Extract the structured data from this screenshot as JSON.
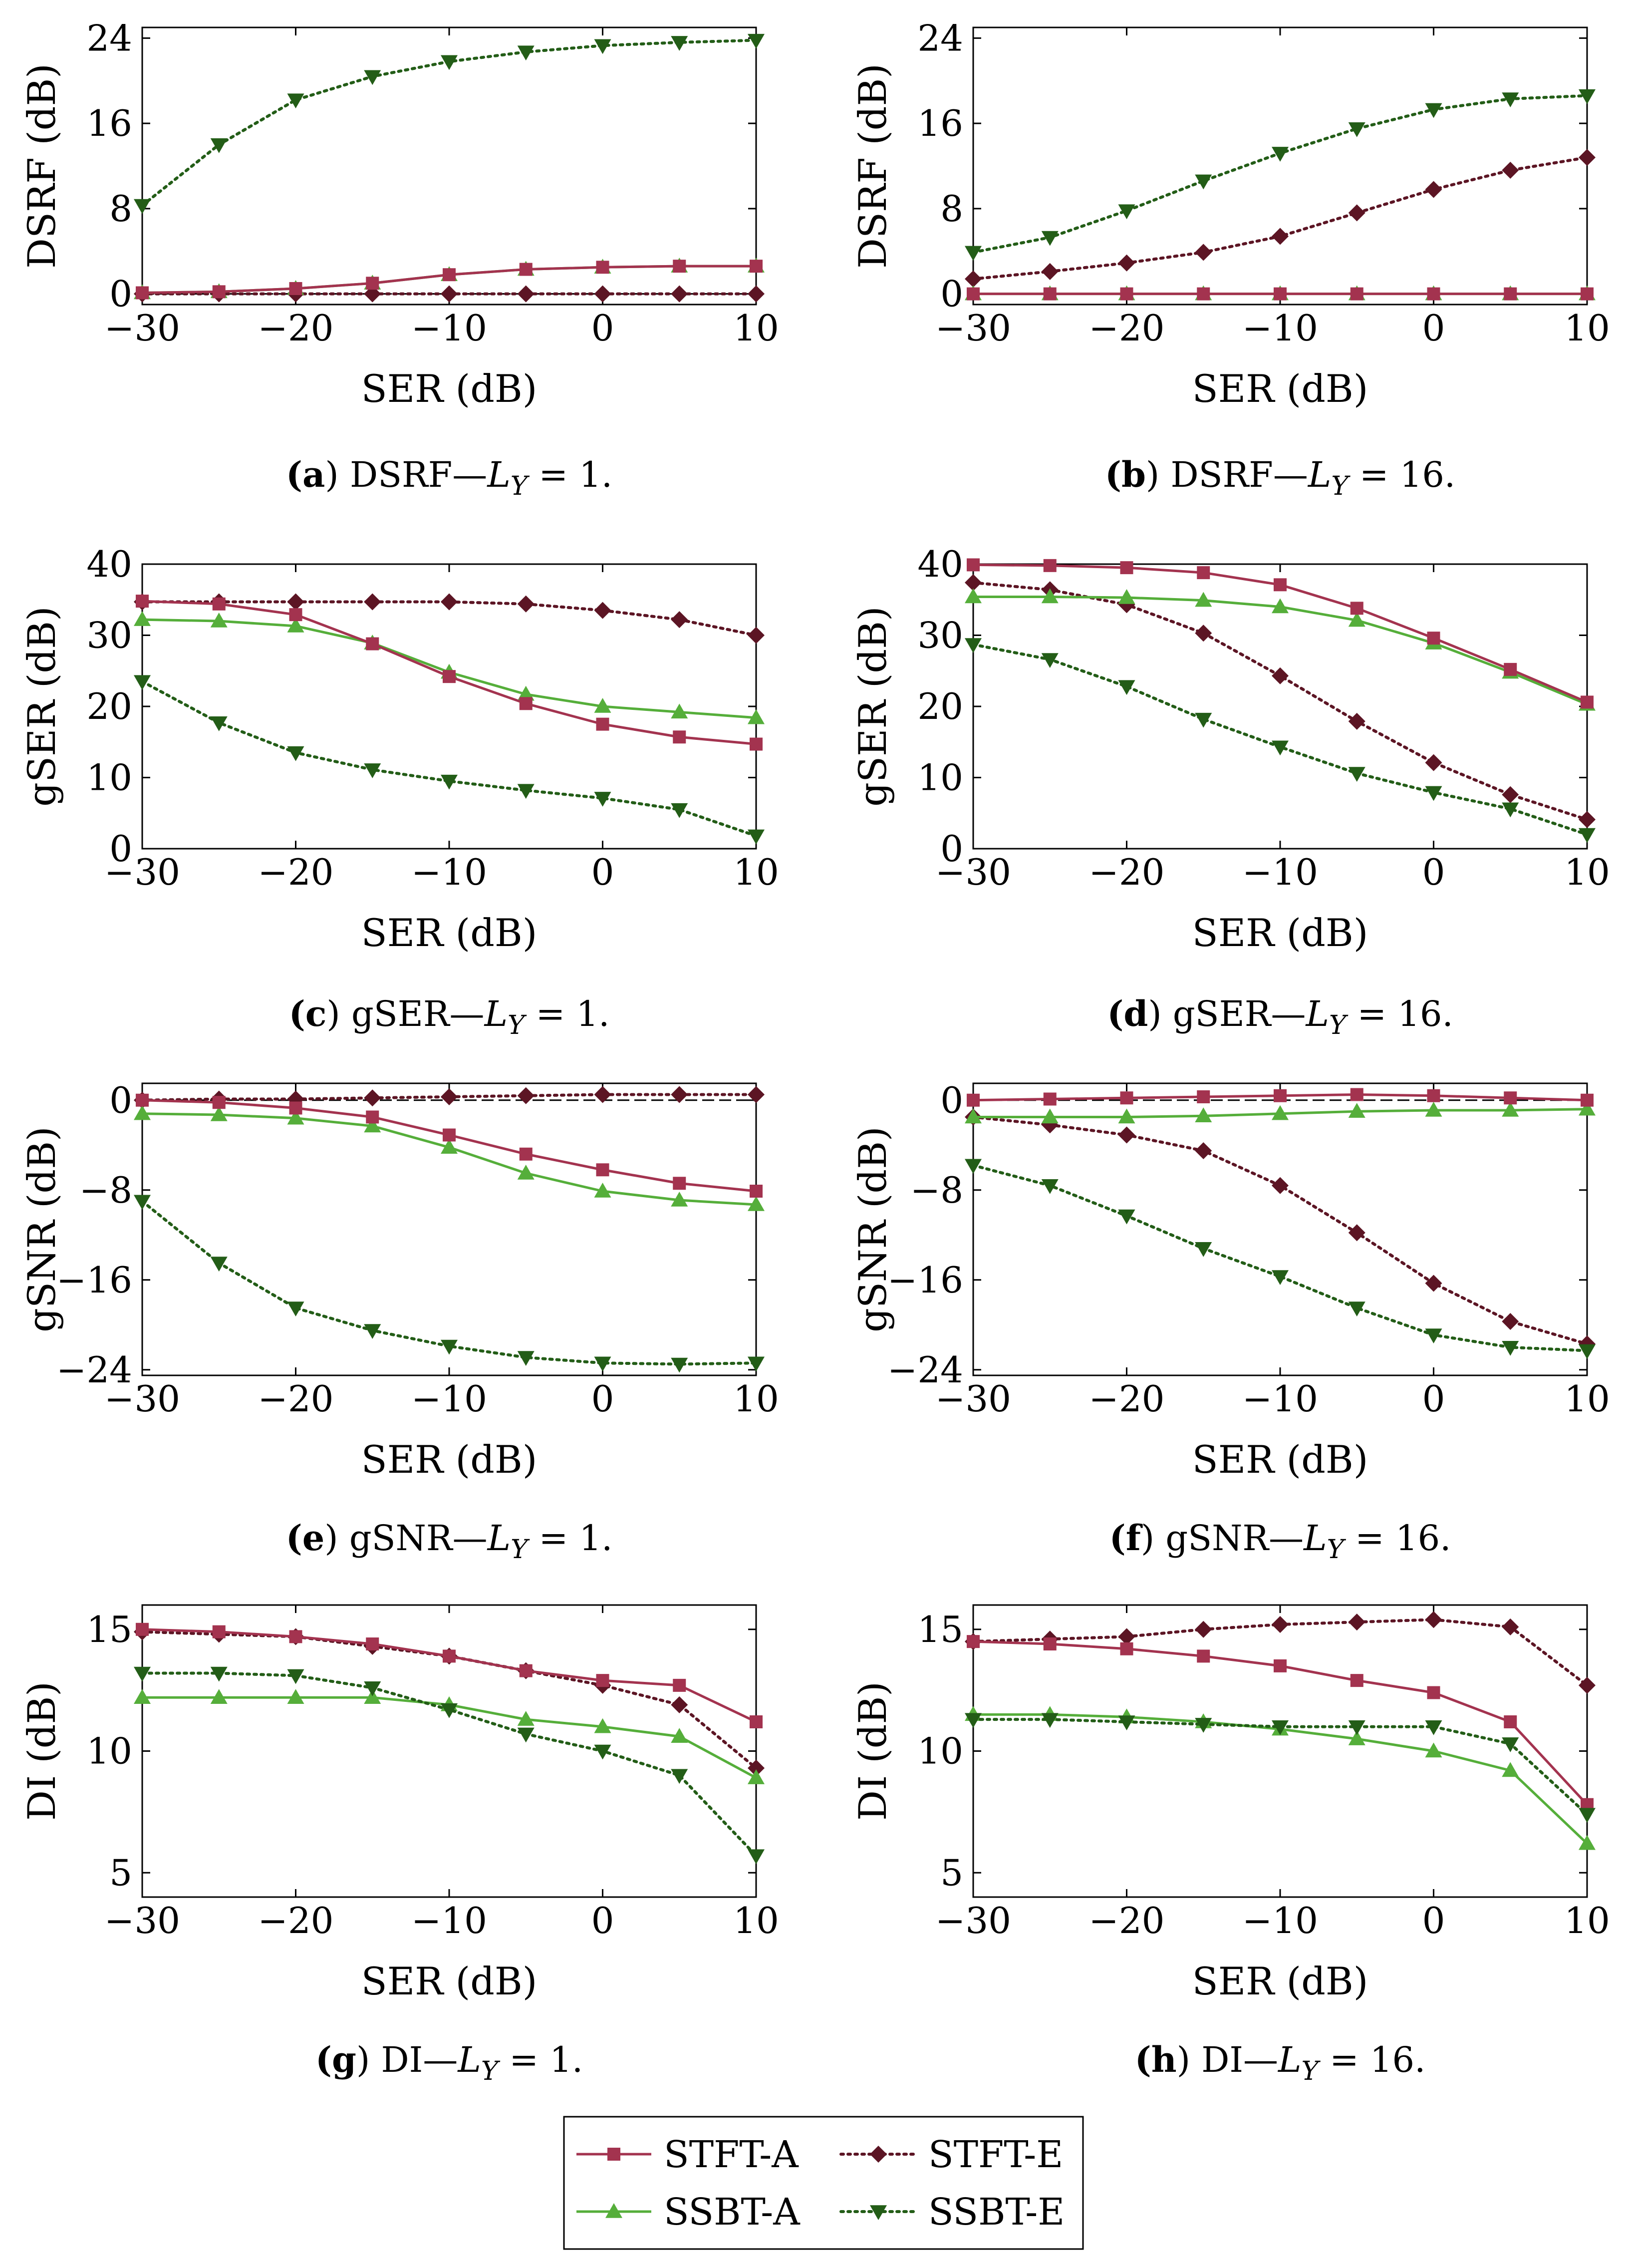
{
  "figure": {
    "legend": [
      {
        "name": "STFT-A",
        "color": "#a3334f",
        "marker": "square",
        "dash": "solid"
      },
      {
        "name": "STFT-E",
        "color": "#5c1524",
        "marker": "diamond",
        "dash": "dotted"
      },
      {
        "name": "SSBT-A",
        "color": "#55ae3a",
        "marker": "triangle-up",
        "dash": "solid"
      },
      {
        "name": "SSBT-E",
        "color": "#235d17",
        "marker": "triangle-down",
        "dash": "dotted"
      }
    ]
  },
  "chart_data": [
    {
      "type": "line",
      "panel": "a",
      "caption_letter": "(a)",
      "caption_text": "DSRF—L",
      "caption_sub": "Y",
      "caption_tail": " = 1.",
      "xlabel": "SER (dB)",
      "ylabel": "DSRF (dB)",
      "xlim": [
        -30,
        10
      ],
      "ylim": [
        -1,
        25
      ],
      "xticks": [
        -30,
        -20,
        -10,
        0,
        10
      ],
      "xtick_labels": [
        "−30",
        "−20",
        "−10",
        "0",
        "10"
      ],
      "yticks": [
        0,
        8,
        16,
        24
      ],
      "ytick_labels": [
        "0",
        "8",
        "16",
        "24"
      ],
      "ref_line": 0,
      "x": [
        -30,
        -25,
        -20,
        -15,
        -10,
        -5,
        0,
        5,
        10
      ],
      "series": [
        {
          "name": "STFT-A",
          "values": [
            0.1,
            0.2,
            0.5,
            1.0,
            1.8,
            2.3,
            2.5,
            2.6,
            2.6
          ]
        },
        {
          "name": "STFT-E",
          "values": [
            0,
            0,
            0,
            0,
            0,
            0,
            0,
            0,
            0
          ]
        },
        {
          "name": "SSBT-A",
          "values": [
            0.1,
            0.2,
            0.5,
            1.0,
            1.8,
            2.3,
            2.5,
            2.6,
            2.6
          ]
        },
        {
          "name": "SSBT-E",
          "values": [
            8.3,
            14.0,
            18.2,
            20.4,
            21.8,
            22.7,
            23.3,
            23.6,
            23.8
          ]
        }
      ]
    },
    {
      "type": "line",
      "panel": "b",
      "caption_letter": "(b)",
      "caption_text": "DSRF—L",
      "caption_sub": "Y",
      "caption_tail": " = 16.",
      "xlabel": "SER (dB)",
      "ylabel": "DSRF (dB)",
      "xlim": [
        -30,
        10
      ],
      "ylim": [
        -1,
        25
      ],
      "xticks": [
        -30,
        -20,
        -10,
        0,
        10
      ],
      "xtick_labels": [
        "−30",
        "−20",
        "−10",
        "0",
        "10"
      ],
      "yticks": [
        0,
        8,
        16,
        24
      ],
      "ytick_labels": [
        "0",
        "8",
        "16",
        "24"
      ],
      "ref_line": 0,
      "x": [
        -30,
        -25,
        -20,
        -15,
        -10,
        -5,
        0,
        5,
        10
      ],
      "series": [
        {
          "name": "STFT-A",
          "values": [
            0,
            0,
            0,
            0,
            0,
            0,
            0,
            0,
            0
          ]
        },
        {
          "name": "STFT-E",
          "values": [
            1.4,
            2.1,
            2.9,
            3.9,
            5.4,
            7.6,
            9.8,
            11.6,
            12.8
          ]
        },
        {
          "name": "SSBT-A",
          "values": [
            0,
            0,
            0,
            0,
            0,
            0,
            0,
            0,
            0
          ]
        },
        {
          "name": "SSBT-E",
          "values": [
            3.9,
            5.3,
            7.8,
            10.6,
            13.2,
            15.5,
            17.3,
            18.3,
            18.6
          ]
        }
      ]
    },
    {
      "type": "line",
      "panel": "c",
      "caption_letter": "(c)",
      "caption_text": "gSER—L",
      "caption_sub": "Y",
      "caption_tail": " = 1.",
      "xlabel": "SER (dB)",
      "ylabel": "gSER (dB)",
      "xlim": [
        -30,
        10
      ],
      "ylim": [
        0,
        40
      ],
      "xticks": [
        -30,
        -20,
        -10,
        0,
        10
      ],
      "xtick_labels": [
        "−30",
        "−20",
        "−10",
        "0",
        "10"
      ],
      "yticks": [
        0,
        10,
        20,
        30,
        40
      ],
      "ytick_labels": [
        "0",
        "10",
        "20",
        "30",
        "40"
      ],
      "ref_line": null,
      "x": [
        -30,
        -25,
        -20,
        -15,
        -10,
        -5,
        0,
        5,
        10
      ],
      "series": [
        {
          "name": "STFT-A",
          "values": [
            34.8,
            34.4,
            32.9,
            28.8,
            24.2,
            20.4,
            17.5,
            15.7,
            14.7
          ]
        },
        {
          "name": "STFT-E",
          "values": [
            34.7,
            34.7,
            34.7,
            34.7,
            34.7,
            34.4,
            33.5,
            32.2,
            30.0
          ]
        },
        {
          "name": "SSBT-A",
          "values": [
            32.2,
            32.0,
            31.3,
            28.9,
            24.8,
            21.7,
            20.0,
            19.2,
            18.4
          ]
        },
        {
          "name": "SSBT-E",
          "values": [
            23.5,
            17.7,
            13.5,
            11.1,
            9.5,
            8.2,
            7.1,
            5.5,
            1.8
          ]
        }
      ]
    },
    {
      "type": "line",
      "panel": "d",
      "caption_letter": "(d)",
      "caption_text": "gSER—L",
      "caption_sub": "Y",
      "caption_tail": " = 16.",
      "xlabel": "SER (dB)",
      "ylabel": "gSER (dB)",
      "xlim": [
        -30,
        10
      ],
      "ylim": [
        0,
        40
      ],
      "xticks": [
        -30,
        -20,
        -10,
        0,
        10
      ],
      "xtick_labels": [
        "−30",
        "−20",
        "−10",
        "0",
        "10"
      ],
      "yticks": [
        0,
        10,
        20,
        30,
        40
      ],
      "ytick_labels": [
        "0",
        "10",
        "20",
        "30",
        "40"
      ],
      "ref_line": null,
      "x": [
        -30,
        -25,
        -20,
        -15,
        -10,
        -5,
        0,
        5,
        10
      ],
      "series": [
        {
          "name": "STFT-A",
          "values": [
            39.9,
            39.8,
            39.5,
            38.8,
            37.1,
            33.8,
            29.6,
            25.2,
            20.6
          ]
        },
        {
          "name": "STFT-E",
          "values": [
            37.4,
            36.4,
            34.3,
            30.3,
            24.3,
            17.9,
            12.1,
            7.6,
            4.1
          ]
        },
        {
          "name": "SSBT-A",
          "values": [
            35.4,
            35.4,
            35.3,
            34.9,
            34.0,
            32.1,
            28.9,
            24.8,
            20.3
          ]
        },
        {
          "name": "SSBT-E",
          "values": [
            28.7,
            26.6,
            22.8,
            18.2,
            14.3,
            10.6,
            7.9,
            5.6,
            2.0
          ]
        }
      ]
    },
    {
      "type": "line",
      "panel": "e",
      "caption_letter": "(e)",
      "caption_text": "gSNR—L",
      "caption_sub": "Y",
      "caption_tail": " = 1.",
      "xlabel": "SER (dB)",
      "ylabel": "gSNR (dB)",
      "xlim": [
        -30,
        10
      ],
      "ylim": [
        -24.5,
        1.5
      ],
      "xticks": [
        -30,
        -20,
        -10,
        0,
        10
      ],
      "xtick_labels": [
        "−30",
        "−20",
        "−10",
        "0",
        "10"
      ],
      "yticks": [
        -24,
        -16,
        -8,
        0
      ],
      "ytick_labels": [
        "−24",
        "−16",
        "−8",
        "0"
      ],
      "ref_line": 0,
      "x": [
        -30,
        -25,
        -20,
        -15,
        -10,
        -5,
        0,
        5,
        10
      ],
      "series": [
        {
          "name": "STFT-A",
          "values": [
            0.0,
            -0.2,
            -0.7,
            -1.5,
            -3.1,
            -4.8,
            -6.2,
            -7.4,
            -8.1
          ]
        },
        {
          "name": "STFT-E",
          "values": [
            0.0,
            0.1,
            0.1,
            0.2,
            0.3,
            0.4,
            0.5,
            0.5,
            0.5
          ]
        },
        {
          "name": "SSBT-A",
          "values": [
            -1.2,
            -1.3,
            -1.6,
            -2.3,
            -4.2,
            -6.5,
            -8.1,
            -8.9,
            -9.3
          ]
        },
        {
          "name": "SSBT-E",
          "values": [
            -9.0,
            -14.5,
            -18.5,
            -20.5,
            -21.9,
            -22.9,
            -23.4,
            -23.5,
            -23.4
          ]
        }
      ]
    },
    {
      "type": "line",
      "panel": "f",
      "caption_letter": "(f)",
      "caption_text": "gSNR—L",
      "caption_sub": "Y",
      "caption_tail": " = 16.",
      "xlabel": "SER (dB)",
      "ylabel": "gSNR (dB)",
      "xlim": [
        -30,
        10
      ],
      "ylim": [
        -24.5,
        1.5
      ],
      "xticks": [
        -30,
        -20,
        -10,
        0,
        10
      ],
      "xtick_labels": [
        "−30",
        "−20",
        "−10",
        "0",
        "10"
      ],
      "yticks": [
        -24,
        -16,
        -8,
        0
      ],
      "ytick_labels": [
        "−24",
        "−16",
        "−8",
        "0"
      ],
      "ref_line": 0,
      "x": [
        -30,
        -25,
        -20,
        -15,
        -10,
        -5,
        0,
        5,
        10
      ],
      "series": [
        {
          "name": "STFT-A",
          "values": [
            0.0,
            0.1,
            0.2,
            0.3,
            0.4,
            0.5,
            0.4,
            0.2,
            0.0
          ]
        },
        {
          "name": "STFT-E",
          "values": [
            -1.5,
            -2.2,
            -3.1,
            -4.5,
            -7.6,
            -11.8,
            -16.3,
            -19.7,
            -21.7
          ]
        },
        {
          "name": "SSBT-A",
          "values": [
            -1.5,
            -1.5,
            -1.5,
            -1.4,
            -1.2,
            -1.0,
            -0.9,
            -0.9,
            -0.8
          ]
        },
        {
          "name": "SSBT-E",
          "values": [
            -5.8,
            -7.6,
            -10.3,
            -13.2,
            -15.7,
            -18.5,
            -20.9,
            -22.0,
            -22.3
          ]
        }
      ]
    },
    {
      "type": "line",
      "panel": "g",
      "caption_letter": "(g)",
      "caption_text": "DI—L",
      "caption_sub": "Y",
      "caption_tail": " = 1.",
      "xlabel": "SER (dB)",
      "ylabel": "DI (dB)",
      "xlim": [
        -30,
        10
      ],
      "ylim": [
        4,
        16
      ],
      "xticks": [
        -30,
        -20,
        -10,
        0,
        10
      ],
      "xtick_labels": [
        "−30",
        "−20",
        "−10",
        "0",
        "10"
      ],
      "yticks": [
        5,
        10,
        15
      ],
      "ytick_labels": [
        "5",
        "10",
        "15"
      ],
      "ref_line": null,
      "x": [
        -30,
        -25,
        -20,
        -15,
        -10,
        -5,
        0,
        5,
        10
      ],
      "series": [
        {
          "name": "STFT-A",
          "values": [
            15.0,
            14.9,
            14.7,
            14.4,
            13.9,
            13.3,
            12.9,
            12.7,
            11.2
          ]
        },
        {
          "name": "STFT-E",
          "values": [
            14.9,
            14.8,
            14.7,
            14.3,
            13.9,
            13.3,
            12.7,
            11.9,
            9.3
          ]
        },
        {
          "name": "SSBT-A",
          "values": [
            12.2,
            12.2,
            12.2,
            12.2,
            11.9,
            11.3,
            11.0,
            10.6,
            8.9
          ]
        },
        {
          "name": "SSBT-E",
          "values": [
            13.2,
            13.2,
            13.1,
            12.6,
            11.7,
            10.7,
            10.0,
            9.0,
            5.7
          ]
        }
      ]
    },
    {
      "type": "line",
      "panel": "h",
      "caption_letter": "(h)",
      "caption_text": "DI—L",
      "caption_sub": "Y",
      "caption_tail": " = 16.",
      "xlabel": "SER (dB)",
      "ylabel": "DI (dB)",
      "xlim": [
        -30,
        10
      ],
      "ylim": [
        4,
        16
      ],
      "xticks": [
        -30,
        -20,
        -10,
        0,
        10
      ],
      "xtick_labels": [
        "−30",
        "−20",
        "−10",
        "0",
        "10"
      ],
      "yticks": [
        5,
        10,
        15
      ],
      "ytick_labels": [
        "5",
        "10",
        "15"
      ],
      "ref_line": null,
      "x": [
        -30,
        -25,
        -20,
        -15,
        -10,
        -5,
        0,
        5,
        10
      ],
      "series": [
        {
          "name": "STFT-A",
          "values": [
            14.5,
            14.4,
            14.2,
            13.9,
            13.5,
            12.9,
            12.4,
            11.2,
            7.8
          ]
        },
        {
          "name": "STFT-E",
          "values": [
            14.5,
            14.6,
            14.7,
            15.0,
            15.2,
            15.3,
            15.4,
            15.1,
            12.7
          ]
        },
        {
          "name": "SSBT-A",
          "values": [
            11.5,
            11.5,
            11.4,
            11.2,
            10.9,
            10.5,
            10.0,
            9.2,
            6.2
          ]
        },
        {
          "name": "SSBT-E",
          "values": [
            11.3,
            11.3,
            11.2,
            11.1,
            11.0,
            11.0,
            11.0,
            10.3,
            7.4
          ]
        }
      ]
    }
  ]
}
